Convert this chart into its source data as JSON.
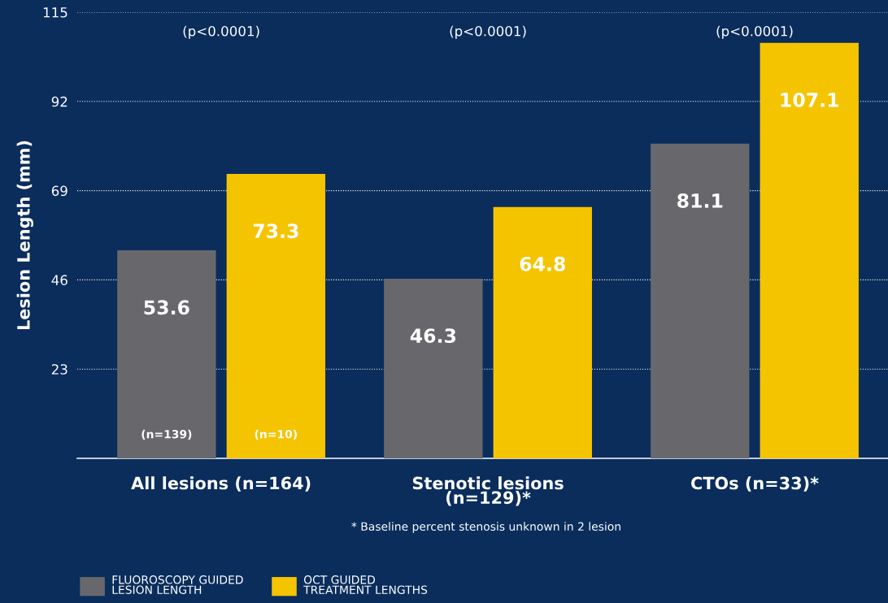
{
  "chart_data": {
    "type": "bar",
    "ylabel": "Lesion Length (mm)",
    "categories": [
      "All lesions (n=164)",
      "Stenotic lesions\n(n=129)*",
      "CTOs (n=33)*"
    ],
    "series": [
      {
        "name": "FLUOROSCOPY GUIDED\nLESION LENGTH",
        "color": "#68686c",
        "values": [
          53.6,
          46.3,
          81.1
        ]
      },
      {
        "name": "OCT GUIDED\nTREATMENT LENGTHS",
        "color": "#f5c400",
        "values": [
          73.3,
          64.8,
          107.1
        ]
      }
    ],
    "ylim": [
      0,
      115
    ],
    "yticks": [
      23,
      46,
      69,
      92,
      115
    ],
    "grid": "y",
    "data_labels": true,
    "legend": "bottom left",
    "annotations": [
      "(p<0.0001)",
      "(p<0.0001)",
      "(p<0.0001)",
      "(n=139)",
      "(n=10)",
      "* Baseline percent stenosis unknown in 2 lesion"
    ]
  }
}
